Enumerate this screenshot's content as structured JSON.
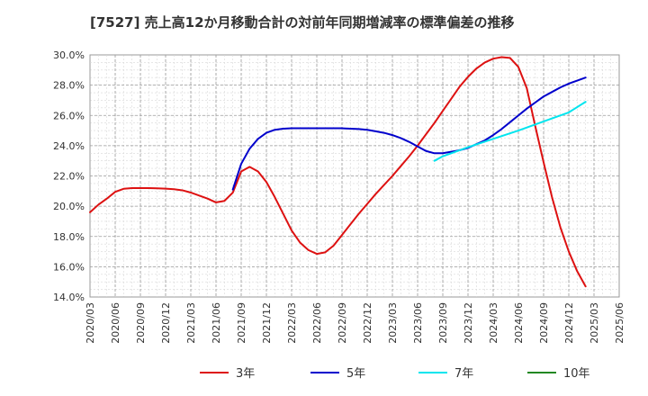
{
  "chart_data": {
    "type": "line",
    "title": "[7527]  売上高12か月移動合計の対前年同期増減率の標準偏差の推移",
    "xlabel": "",
    "ylabel": "",
    "ylim": [
      14.0,
      30.0
    ],
    "y_ticks": [
      "14.0%",
      "16.0%",
      "18.0%",
      "20.0%",
      "22.0%",
      "24.0%",
      "26.0%",
      "28.0%",
      "30.0%"
    ],
    "x_ticks": [
      "2020/03",
      "2020/06",
      "2020/09",
      "2020/12",
      "2021/03",
      "2021/06",
      "2021/09",
      "2021/12",
      "2022/03",
      "2022/06",
      "2022/09",
      "2022/12",
      "2023/03",
      "2023/06",
      "2023/09",
      "2023/12",
      "2024/03",
      "2024/06",
      "2024/09",
      "2024/12",
      "2025/03",
      "2025/06"
    ],
    "grid": true,
    "legend_position": "bottom",
    "series": [
      {
        "name": "3年",
        "color": "#dd1111",
        "points": [
          [
            "2020/03",
            19.6
          ],
          [
            "2020/04",
            20.1
          ],
          [
            "2020/05",
            20.5
          ],
          [
            "2020/06",
            20.95
          ],
          [
            "2020/07",
            21.15
          ],
          [
            "2020/08",
            21.2
          ],
          [
            "2020/09",
            21.2
          ],
          [
            "2020/10",
            21.2
          ],
          [
            "2020/11",
            21.18
          ],
          [
            "2020/12",
            21.16
          ],
          [
            "2021/01",
            21.12
          ],
          [
            "2021/02",
            21.05
          ],
          [
            "2021/03",
            20.9
          ],
          [
            "2021/04",
            20.7
          ],
          [
            "2021/05",
            20.5
          ],
          [
            "2021/06",
            20.25
          ],
          [
            "2021/07",
            20.35
          ],
          [
            "2021/08",
            20.9
          ],
          [
            "2021/09",
            22.3
          ],
          [
            "2021/10",
            22.6
          ],
          [
            "2021/11",
            22.3
          ],
          [
            "2021/12",
            21.6
          ],
          [
            "2022/01",
            20.6
          ],
          [
            "2022/02",
            19.5
          ],
          [
            "2022/03",
            18.4
          ],
          [
            "2022/04",
            17.6
          ],
          [
            "2022/05",
            17.1
          ],
          [
            "2022/06",
            16.85
          ],
          [
            "2022/07",
            16.95
          ],
          [
            "2022/08",
            17.4
          ],
          [
            "2022/09",
            18.1
          ],
          [
            "2022/10",
            18.8
          ],
          [
            "2022/11",
            19.5
          ],
          [
            "2022/12",
            20.15
          ],
          [
            "2023/01",
            20.8
          ],
          [
            "2023/02",
            21.4
          ],
          [
            "2023/03",
            22.0
          ],
          [
            "2023/04",
            22.65
          ],
          [
            "2023/05",
            23.3
          ],
          [
            "2023/06",
            24.0
          ],
          [
            "2023/07",
            24.75
          ],
          [
            "2023/08",
            25.5
          ],
          [
            "2023/09",
            26.3
          ],
          [
            "2023/10",
            27.1
          ],
          [
            "2023/11",
            27.9
          ],
          [
            "2023/12",
            28.55
          ],
          [
            "2024/01",
            29.1
          ],
          [
            "2024/02",
            29.5
          ],
          [
            "2024/03",
            29.75
          ],
          [
            "2024/04",
            29.85
          ],
          [
            "2024/05",
            29.8
          ],
          [
            "2024/06",
            29.2
          ],
          [
            "2024/07",
            27.8
          ],
          [
            "2024/08",
            25.3
          ],
          [
            "2024/09",
            22.9
          ],
          [
            "2024/10",
            20.6
          ],
          [
            "2024/11",
            18.6
          ],
          [
            "2024/12",
            17.0
          ],
          [
            "2025/01",
            15.7
          ],
          [
            "2025/02",
            14.7
          ]
        ]
      },
      {
        "name": "5年",
        "color": "#0000cc",
        "points": [
          [
            "2021/08",
            21.1
          ],
          [
            "2021/09",
            22.8
          ],
          [
            "2021/10",
            23.8
          ],
          [
            "2021/11",
            24.45
          ],
          [
            "2021/12",
            24.85
          ],
          [
            "2022/01",
            25.05
          ],
          [
            "2022/02",
            25.12
          ],
          [
            "2022/03",
            25.15
          ],
          [
            "2022/06",
            25.15
          ],
          [
            "2022/09",
            25.15
          ],
          [
            "2022/11",
            25.1
          ],
          [
            "2022/12",
            25.05
          ],
          [
            "2023/01",
            24.95
          ],
          [
            "2023/02",
            24.85
          ],
          [
            "2023/03",
            24.7
          ],
          [
            "2023/04",
            24.5
          ],
          [
            "2023/05",
            24.25
          ],
          [
            "2023/06",
            23.95
          ],
          [
            "2023/07",
            23.65
          ],
          [
            "2023/08",
            23.5
          ],
          [
            "2023/09",
            23.5
          ],
          [
            "2023/10",
            23.6
          ],
          [
            "2023/11",
            23.7
          ],
          [
            "2023/12",
            23.85
          ],
          [
            "2024/01",
            24.1
          ],
          [
            "2024/02",
            24.35
          ],
          [
            "2024/03",
            24.7
          ],
          [
            "2024/04",
            25.1
          ],
          [
            "2024/05",
            25.55
          ],
          [
            "2024/06",
            26.0
          ],
          [
            "2024/07",
            26.45
          ],
          [
            "2024/08",
            26.85
          ],
          [
            "2024/09",
            27.25
          ],
          [
            "2024/10",
            27.55
          ],
          [
            "2024/11",
            27.85
          ],
          [
            "2024/12",
            28.1
          ],
          [
            "2025/01",
            28.3
          ],
          [
            "2025/02",
            28.5
          ]
        ]
      },
      {
        "name": "7年",
        "color": "#00e5ee",
        "points": [
          [
            "2023/08",
            23.0
          ],
          [
            "2023/09",
            23.3
          ],
          [
            "2023/12",
            23.9
          ],
          [
            "2024/03",
            24.45
          ],
          [
            "2024/06",
            25.0
          ],
          [
            "2024/09",
            25.6
          ],
          [
            "2024/12",
            26.2
          ],
          [
            "2025/02",
            26.9
          ]
        ]
      },
      {
        "name": "10年",
        "color": "#228822",
        "points": []
      }
    ]
  }
}
